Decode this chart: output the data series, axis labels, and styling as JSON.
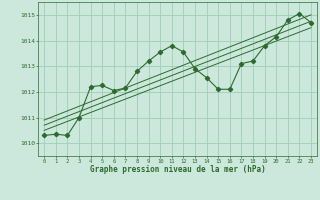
{
  "main_line_x": [
    0,
    1,
    2,
    3,
    4,
    5,
    6,
    7,
    8,
    9,
    10,
    11,
    12,
    13,
    14,
    15,
    16,
    17,
    18,
    19,
    20,
    21,
    22,
    23
  ],
  "main_line_y": [
    1010.3,
    1010.35,
    1010.3,
    1011.0,
    1012.2,
    1012.25,
    1012.05,
    1012.15,
    1012.8,
    1013.2,
    1013.55,
    1013.8,
    1013.55,
    1012.9,
    1012.55,
    1012.1,
    1012.1,
    1013.1,
    1013.2,
    1013.8,
    1014.15,
    1014.8,
    1015.05,
    1014.7
  ],
  "trend_line1_x": [
    0,
    23
  ],
  "trend_line1_y": [
    1010.5,
    1014.5
  ],
  "trend_line2_x": [
    0,
    23
  ],
  "trend_line2_y": [
    1010.7,
    1014.75
  ],
  "trend_line3_x": [
    0,
    23
  ],
  "trend_line3_y": [
    1010.9,
    1015.0
  ],
  "line_color": "#2d6a2d",
  "bg_color": "#cce8dc",
  "grid_color": "#9ecfb4",
  "text_color": "#2d6a2d",
  "xlabel": "Graphe pression niveau de la mer (hPa)",
  "ylim": [
    1009.5,
    1015.5
  ],
  "xlim": [
    -0.5,
    23.5
  ],
  "yticks": [
    1010,
    1011,
    1012,
    1013,
    1014,
    1015
  ],
  "xticks": [
    0,
    1,
    2,
    3,
    4,
    5,
    6,
    7,
    8,
    9,
    10,
    11,
    12,
    13,
    14,
    15,
    16,
    17,
    18,
    19,
    20,
    21,
    22,
    23
  ]
}
